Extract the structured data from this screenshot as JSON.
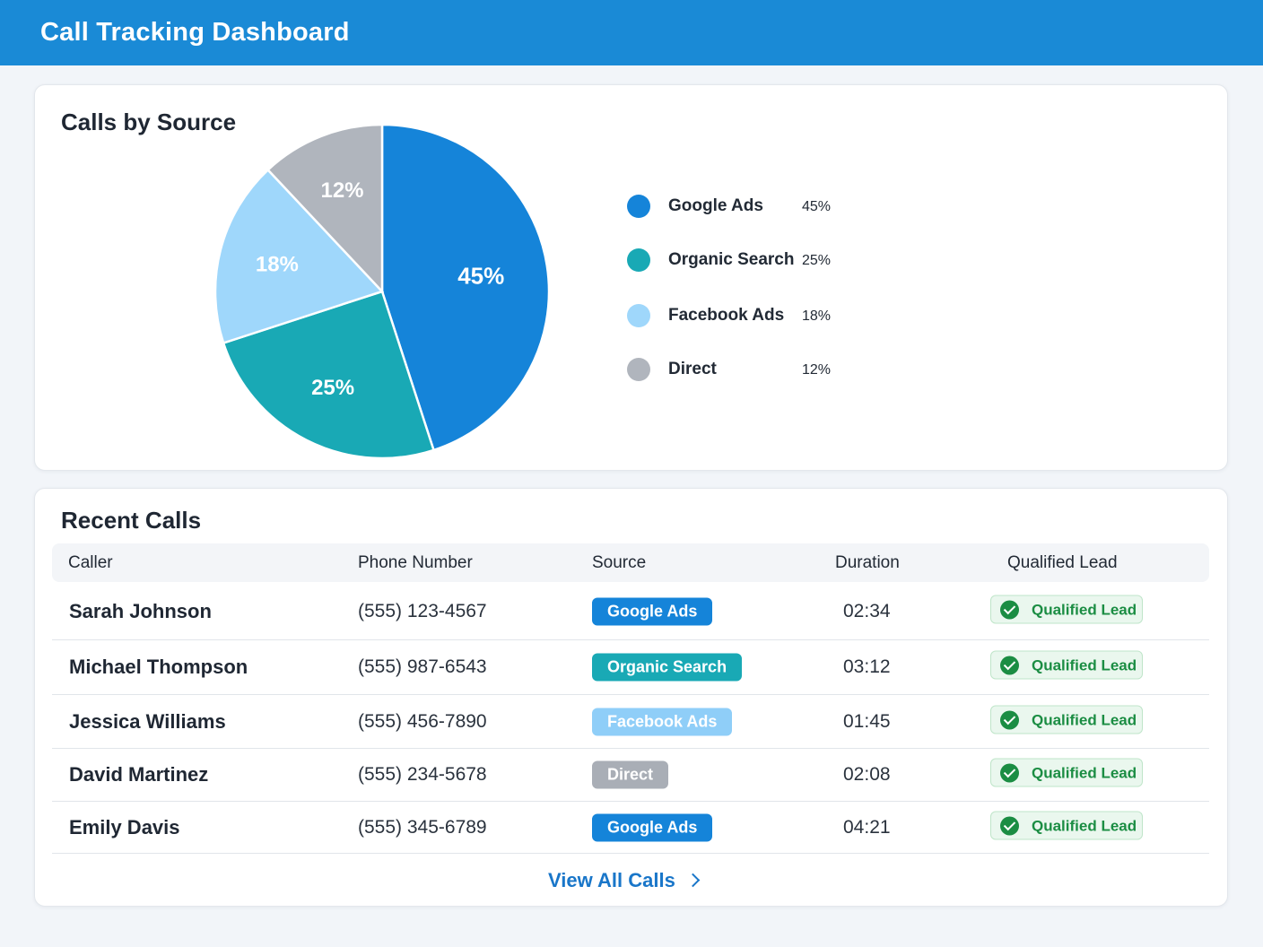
{
  "header": {
    "title": "Call Tracking Dashboard"
  },
  "chart_card": {
    "title": "Calls by Source",
    "chart_data": {
      "type": "pie",
      "categories": [
        "Google Ads",
        "Organic Search",
        "Facebook Ads",
        "Direct"
      ],
      "values": [
        45,
        25,
        18,
        12
      ],
      "labels": [
        "45%",
        "25%",
        "18%",
        "12%"
      ],
      "colors": [
        "#1584d9",
        "#19a9b5",
        "#9fd7fb",
        "#b0b5bd"
      ],
      "legend_placement": "right"
    },
    "legend": [
      {
        "name": "Google Ads",
        "value": "45%",
        "color": "#1584d9"
      },
      {
        "name": "Organic Search",
        "value": "25%",
        "color": "#19a9b5"
      },
      {
        "name": "Facebook Ads",
        "value": "18%",
        "color": "#9fd7fb"
      },
      {
        "name": "Direct",
        "value": "12%",
        "color": "#b0b5bd"
      }
    ]
  },
  "table_card": {
    "title": "Recent Calls",
    "columns": [
      "Caller",
      "Phone Number",
      "Source",
      "Duration",
      "Qualified Lead"
    ],
    "rows": [
      {
        "caller": "Sarah Johnson",
        "phone": "(555) 123-4567",
        "source": "Google Ads",
        "source_color": "#1584d9",
        "duration": "02:34",
        "lead": "Qualified Lead"
      },
      {
        "caller": "Michael Thompson",
        "phone": "(555) 987-6543",
        "source": "Organic Search",
        "source_color": "#19a9b5",
        "duration": "03:12",
        "lead": "Qualified Lead"
      },
      {
        "caller": "Jessica Williams",
        "phone": "(555) 456-7890",
        "source": "Facebook Ads",
        "source_color": "#8fcef8",
        "duration": "01:45",
        "lead": "Qualified Lead"
      },
      {
        "caller": "David Martinez",
        "phone": "(555) 234-5678",
        "source": "Direct",
        "source_color": "#a9aeb6",
        "duration": "02:08",
        "lead": "Qualified Lead"
      },
      {
        "caller": "Emily Davis",
        "phone": "(555) 345-6789",
        "source": "Google Ads",
        "source_color": "#1584d9",
        "duration": "04:21",
        "lead": "Qualified Lead"
      }
    ],
    "view_all_label": "View All Calls"
  }
}
